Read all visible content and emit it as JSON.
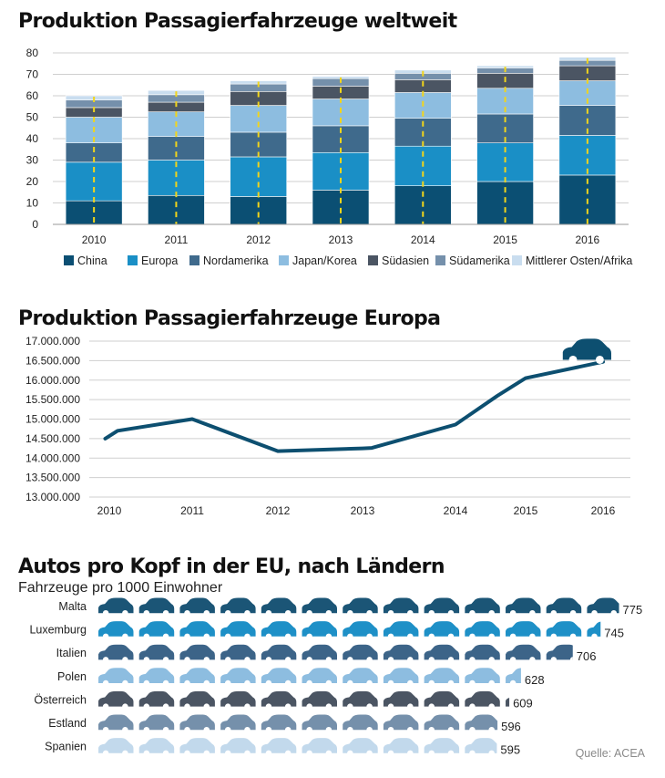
{
  "charts": {
    "world": {
      "title": "Produktion Passagierfahrzeuge weltweit"
    },
    "europe": {
      "title": "Produktion Passagierfahrzeuge Europa"
    },
    "eu": {
      "title": "Autos pro Kopf in der EU, nach Ländern",
      "subtitle": "Fahrzeuge pro 1000 Einwohner"
    }
  },
  "source": "Quelle: ACEA",
  "chart_data": [
    {
      "type": "bar",
      "stacked": true,
      "title": "Produktion Passagierfahrzeuge weltweit",
      "categories": [
        "2010",
        "2011",
        "2012",
        "2013",
        "2014",
        "2015",
        "2016"
      ],
      "ylim": [
        0,
        80
      ],
      "yticks": [
        0,
        10,
        20,
        30,
        40,
        50,
        60,
        70,
        80
      ],
      "grid": true,
      "legend_position": "bottom",
      "annotations": "dashed yellow line through the middle of each bar",
      "series": [
        {
          "name": "China",
          "color": "#0b4f73",
          "values": [
            11,
            13.5,
            13,
            16,
            18,
            20,
            23
          ]
        },
        {
          "name": "Europa",
          "color": "#1a8fc6",
          "values": [
            18,
            16.5,
            18.5,
            17.5,
            18.5,
            18,
            18.5
          ]
        },
        {
          "name": "Nordamerika",
          "color": "#3f6a8c",
          "values": [
            9,
            11,
            11.5,
            12.5,
            13,
            13.5,
            14
          ]
        },
        {
          "name": "Japan/Korea",
          "color": "#8dbde0",
          "values": [
            12,
            11.5,
            12.5,
            12.5,
            12,
            12,
            11.5
          ]
        },
        {
          "name": "Südasien",
          "color": "#4b5563",
          "values": [
            4.5,
            4.5,
            6.5,
            6,
            6,
            7,
            7
          ]
        },
        {
          "name": "Südamerika",
          "color": "#7590ab",
          "values": [
            3.5,
            3.5,
            3.5,
            3.5,
            3,
            2.5,
            2.5
          ]
        },
        {
          "name": "Mittlerer Osten/Afrika",
          "color": "#c9ddef",
          "values": [
            2,
            2,
            1.5,
            1,
            1.5,
            1,
            1.5
          ]
        }
      ]
    },
    {
      "type": "line",
      "title": "Produktion Passagierfahrzeuge Europa",
      "categories": [
        "2010",
        "2011",
        "2012",
        "2013",
        "2014",
        "2015",
        "2016"
      ],
      "yticks": [
        13000000,
        13500000,
        14000000,
        14500000,
        15000000,
        15500000,
        16000000,
        16500000,
        17000000
      ],
      "yticklabels": [
        "13.000.000",
        "13.500.000",
        "14.000.000",
        "14.500.000",
        "15.000.000",
        "15.500.000",
        "16.000.000",
        "16.500.000",
        "17.000.000"
      ],
      "ylim": [
        13000000,
        17000000
      ],
      "grid": true,
      "color": "#0d4f70",
      "series": [
        {
          "x": [
            2009.95,
            2010.1,
            2011,
            2012,
            2013,
            2013.1,
            2014,
            2014.6,
            2015,
            2016
          ],
          "values": [
            14500000,
            14700000,
            15000000,
            14180000,
            14250000,
            14260000,
            14860000,
            15600000,
            16050000,
            16470000
          ]
        }
      ],
      "annotations": "car icon at the end of the line"
    },
    {
      "type": "bar",
      "orientation": "horizontal",
      "pictogram": true,
      "title": "Autos pro Kopf in der EU, nach Ländern",
      "subtitle": "Fahrzeuge pro 1000 Einwohner",
      "units_per_icon": 60,
      "categories": [
        "Malta",
        "Luxemburg",
        "Italien",
        "Polen",
        "Österreich",
        "Estland",
        "Spanien"
      ],
      "values": [
        775,
        745,
        706,
        628,
        609,
        596,
        595
      ],
      "colors": [
        "#1b5576",
        "#1e90c7",
        "#3c6488",
        "#8dbde0",
        "#4b5563",
        "#7590ab",
        "#c2d9ec"
      ],
      "source": "Quelle: ACEA"
    }
  ]
}
